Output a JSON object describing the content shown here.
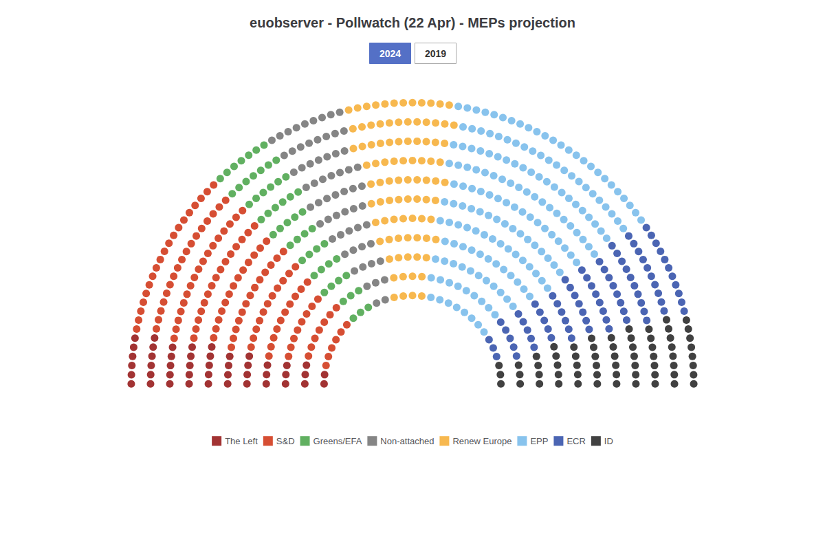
{
  "chart_data": {
    "type": "parliament",
    "title": "euobserver - Pollwatch (22 Apr) - MEPs projection",
    "categories": [
      "The Left",
      "S&D",
      "Greens/EFA",
      "Non-attached",
      "Renew Europe",
      "EPP",
      "ECR",
      "ID"
    ],
    "values": [
      46,
      136,
      53,
      62,
      88,
      176,
      78,
      62
    ],
    "colors": [
      "#8B0000",
      "#CC2200",
      "#3a9c3a",
      "#666666",
      "#F5A623",
      "#6AB4E8",
      "#1E3EA0",
      "#111111"
    ],
    "annotations": [
      "2024",
      "2019"
    ],
    "legend": "bottom",
    "grid": false,
    "tick_labels": false
  }
}
